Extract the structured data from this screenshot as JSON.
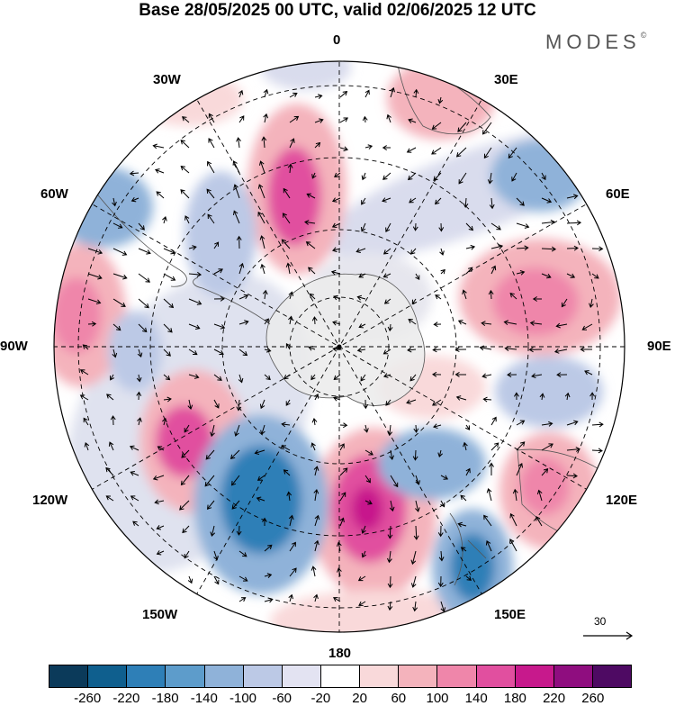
{
  "title": "Base 28/05/2025 00 UTC, valid 02/06/2025 12 UTC",
  "brand": "MODES",
  "brand_mark": "©",
  "longitude_labels": {
    "top": "0",
    "top_left": "30W",
    "top_right": "30E",
    "left_upper": "60W",
    "right_upper": "60E",
    "left": "90W",
    "right": "90E",
    "left_lower": "120W",
    "right_lower": "120E",
    "bottom_left": "150W",
    "bottom_right": "150E",
    "bottom": "180"
  },
  "reference_vector": "30",
  "colorbar": {
    "ticks": [
      "-260",
      "-220",
      "-180",
      "-140",
      "-100",
      "-60",
      "-20",
      "20",
      "60",
      "100",
      "140",
      "180",
      "220",
      "260"
    ],
    "colors": [
      "#0b3a5a",
      "#0f5f8e",
      "#2e7fb7",
      "#5d9ccb",
      "#8fb2d9",
      "#bcc9e6",
      "#e3e3f2",
      "#ffffff",
      "#f9d9da",
      "#f4b3bc",
      "#ef86aa",
      "#e14f9f",
      "#c7198c",
      "#8f0d7f",
      "#4e0a63"
    ]
  },
  "map_features": {
    "projection": "south polar stereographic",
    "contours": "filled geopotential height anomaly",
    "vectors": "wind arrows",
    "grid": "dashed graticule"
  }
}
